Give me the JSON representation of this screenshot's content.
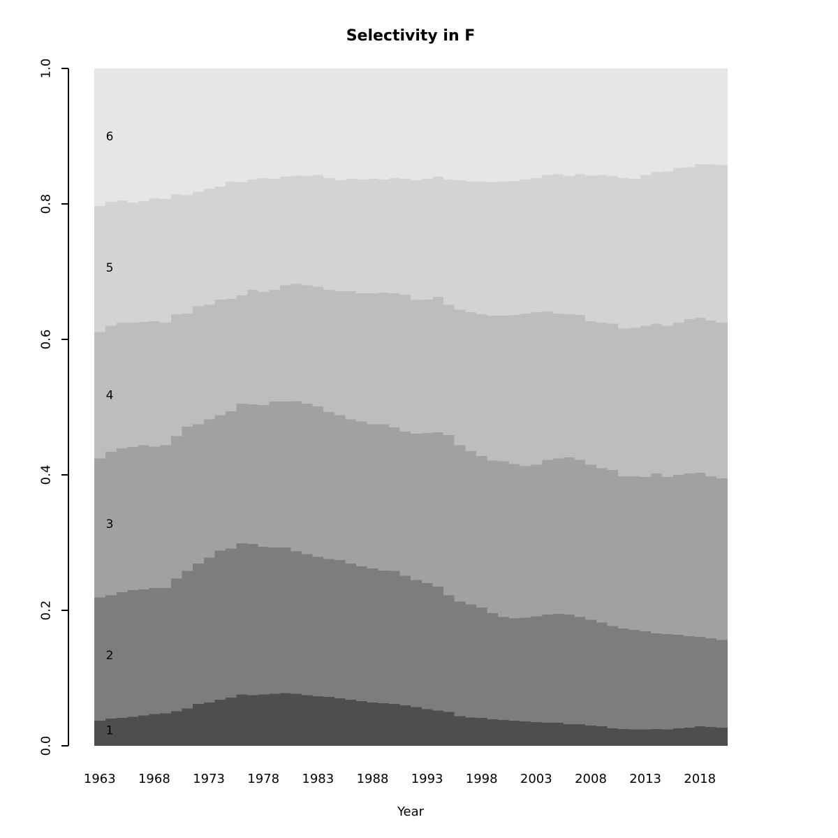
{
  "page": {
    "background": "#ffffff"
  },
  "chart_data": {
    "type": "stacked-bar",
    "title": "Selectivity in F",
    "xlabel": "Year",
    "ylabel": "",
    "ylim": [
      0,
      1
    ],
    "grid": false,
    "legend_position": "labels-inside-left-of-plot",
    "y_ticks": [
      "0.0",
      "0.2",
      "0.4",
      "0.6",
      "0.8",
      "1.0"
    ],
    "x_tick_years": [
      1963,
      1968,
      1973,
      1978,
      1983,
      1988,
      1993,
      1998,
      2003,
      2008,
      2013,
      2018
    ],
    "years_start": 1963,
    "years_end": 2020,
    "note": "Each series entry gives the cumulative upper proportion boundary of that age band per year (1963-2020); band height = upper - previous band upper.",
    "series": [
      {
        "name": "1",
        "color": "#4e4e4e",
        "label_y": 0.023,
        "upper": [
          0.037,
          0.04,
          0.041,
          0.043,
          0.045,
          0.047,
          0.048,
          0.051,
          0.055,
          0.062,
          0.064,
          0.068,
          0.071,
          0.076,
          0.075,
          0.076,
          0.077,
          0.078,
          0.077,
          0.075,
          0.073,
          0.072,
          0.07,
          0.068,
          0.066,
          0.064,
          0.063,
          0.062,
          0.06,
          0.057,
          0.054,
          0.052,
          0.05,
          0.044,
          0.042,
          0.041,
          0.039,
          0.038,
          0.037,
          0.036,
          0.035,
          0.034,
          0.034,
          0.032,
          0.032,
          0.03,
          0.029,
          0.026,
          0.025,
          0.024,
          0.024,
          0.025,
          0.024,
          0.026,
          0.027,
          0.029,
          0.028,
          0.027
        ]
      },
      {
        "name": "2",
        "color": "#7d7d7d",
        "label_y": 0.134,
        "upper": [
          0.219,
          0.222,
          0.227,
          0.23,
          0.231,
          0.233,
          0.233,
          0.247,
          0.258,
          0.269,
          0.278,
          0.288,
          0.291,
          0.299,
          0.298,
          0.294,
          0.293,
          0.293,
          0.287,
          0.283,
          0.279,
          0.276,
          0.274,
          0.269,
          0.265,
          0.262,
          0.259,
          0.258,
          0.251,
          0.245,
          0.24,
          0.235,
          0.222,
          0.213,
          0.209,
          0.204,
          0.196,
          0.19,
          0.188,
          0.189,
          0.191,
          0.194,
          0.195,
          0.194,
          0.19,
          0.186,
          0.182,
          0.177,
          0.173,
          0.171,
          0.169,
          0.166,
          0.165,
          0.164,
          0.162,
          0.161,
          0.159,
          0.156
        ]
      },
      {
        "name": "3",
        "color": "#a1a1a1",
        "label_y": 0.328,
        "upper": [
          0.424,
          0.434,
          0.439,
          0.441,
          0.444,
          0.442,
          0.444,
          0.457,
          0.471,
          0.475,
          0.482,
          0.488,
          0.494,
          0.505,
          0.504,
          0.503,
          0.508,
          0.508,
          0.509,
          0.505,
          0.501,
          0.493,
          0.488,
          0.482,
          0.479,
          0.475,
          0.475,
          0.47,
          0.464,
          0.461,
          0.462,
          0.463,
          0.459,
          0.444,
          0.435,
          0.428,
          0.421,
          0.42,
          0.416,
          0.413,
          0.415,
          0.422,
          0.424,
          0.426,
          0.422,
          0.415,
          0.41,
          0.407,
          0.398,
          0.398,
          0.397,
          0.402,
          0.397,
          0.4,
          0.402,
          0.403,
          0.398,
          0.395
        ]
      },
      {
        "name": "4",
        "color": "#bdbdbd",
        "label_y": 0.518,
        "upper": [
          0.611,
          0.62,
          0.625,
          0.625,
          0.626,
          0.627,
          0.625,
          0.637,
          0.638,
          0.649,
          0.651,
          0.659,
          0.66,
          0.665,
          0.673,
          0.67,
          0.673,
          0.68,
          0.682,
          0.68,
          0.678,
          0.673,
          0.671,
          0.671,
          0.668,
          0.668,
          0.669,
          0.668,
          0.666,
          0.658,
          0.659,
          0.663,
          0.651,
          0.644,
          0.64,
          0.637,
          0.635,
          0.635,
          0.636,
          0.638,
          0.64,
          0.641,
          0.638,
          0.637,
          0.636,
          0.627,
          0.625,
          0.623,
          0.616,
          0.617,
          0.62,
          0.623,
          0.62,
          0.625,
          0.63,
          0.632,
          0.628,
          0.625
        ]
      },
      {
        "name": "5",
        "color": "#d3d3d3",
        "label_y": 0.706,
        "upper": [
          0.797,
          0.803,
          0.805,
          0.802,
          0.804,
          0.808,
          0.807,
          0.814,
          0.813,
          0.818,
          0.822,
          0.826,
          0.833,
          0.832,
          0.836,
          0.838,
          0.837,
          0.84,
          0.842,
          0.841,
          0.843,
          0.838,
          0.835,
          0.837,
          0.836,
          0.837,
          0.836,
          0.838,
          0.837,
          0.835,
          0.837,
          0.84,
          0.836,
          0.835,
          0.833,
          0.833,
          0.832,
          0.833,
          0.834,
          0.836,
          0.838,
          0.843,
          0.844,
          0.841,
          0.844,
          0.842,
          0.843,
          0.841,
          0.838,
          0.837,
          0.843,
          0.847,
          0.848,
          0.853,
          0.854,
          0.859,
          0.858,
          0.857
        ]
      },
      {
        "name": "6",
        "color": "#e6e6e6",
        "label_y": 0.9,
        "upper_constant": 1.0
      }
    ]
  }
}
